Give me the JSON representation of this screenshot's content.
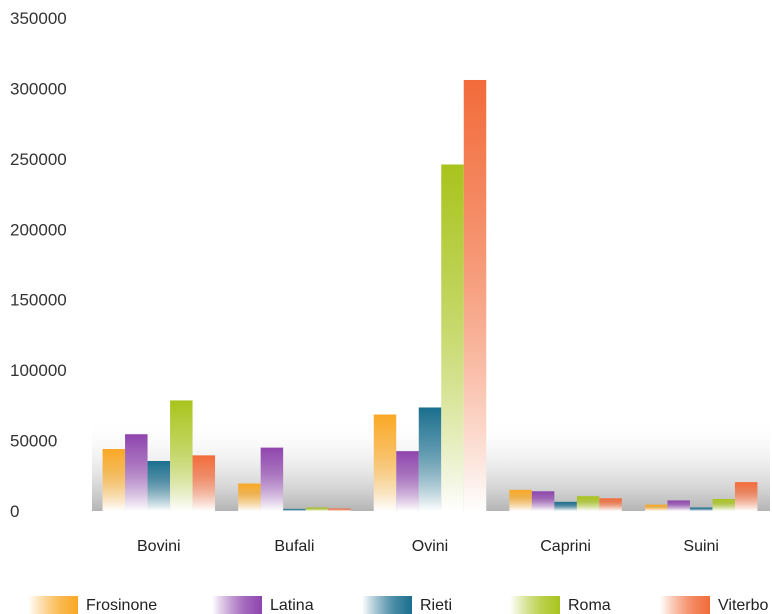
{
  "chart_data": {
    "type": "bar",
    "title": "",
    "xlabel": "",
    "ylabel": "",
    "ylim": [
      0,
      350000
    ],
    "yticks": [
      0,
      50000,
      100000,
      150000,
      200000,
      250000,
      300000,
      350000
    ],
    "ytick_labels": [
      "0",
      "50000",
      "100000",
      "150000",
      "200000",
      "250000",
      "300000",
      "350000"
    ],
    "categories": [
      "Bovini",
      "Bufali",
      "Ovini",
      "Caprini",
      "Suini"
    ],
    "legend_position": "bottom",
    "grid": false,
    "series": [
      {
        "name": "Frosinone",
        "color": "#f9a825",
        "values": [
          44000,
          19500,
          68500,
          15000,
          4500
        ]
      },
      {
        "name": "Latina",
        "color": "#8e44ad",
        "values": [
          54500,
          45000,
          42500,
          14000,
          7500
        ]
      },
      {
        "name": "Rieti",
        "color": "#1a6e8e",
        "values": [
          35500,
          1500,
          73500,
          6500,
          2500
        ]
      },
      {
        "name": "Roma",
        "color": "#a8c41c",
        "values": [
          78500,
          2500,
          246000,
          10500,
          8500
        ]
      },
      {
        "name": "Viterbo",
        "color": "#f26b3a",
        "values": [
          39500,
          1800,
          306000,
          9000,
          20500
        ]
      }
    ]
  }
}
